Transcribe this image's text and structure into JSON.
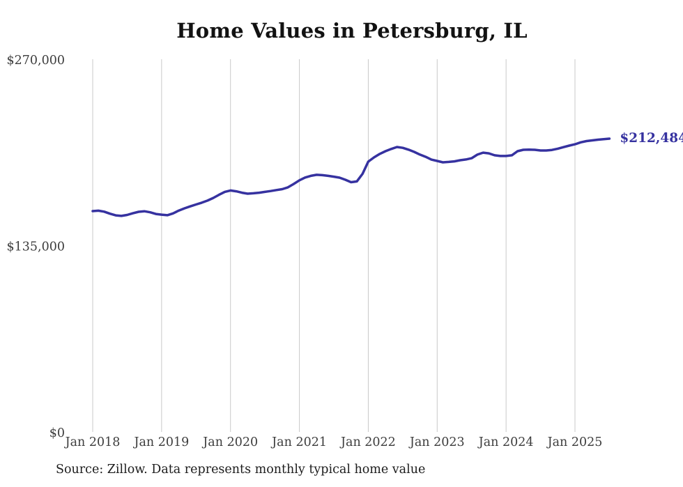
{
  "chart_data": {
    "type": "line",
    "title": "Home Values in Petersburg, IL",
    "source_note": "Source: Zillow. Data represents monthly typical home value",
    "end_label": "$212,484",
    "latest_value": 212484,
    "x_tick_labels": [
      "Jan 2018",
      "Jan 2019",
      "Jan 2020",
      "Jan 2021",
      "Jan 2022",
      "Jan 2023",
      "Jan 2024",
      "Jan 2025"
    ],
    "y_tick_labels": [
      "$270,000",
      "$135,000",
      "$0"
    ],
    "y_tick_values": [
      270000,
      135000,
      0
    ],
    "ylim": [
      0,
      270000
    ],
    "grid": "vertical-only",
    "legend": "none",
    "x_start": "Jan 2018",
    "x_end": "Jul 2025",
    "frequency": "monthly",
    "colors": {
      "line": "#3632a0",
      "grid": "#c9c9c9",
      "title_text": "#121212",
      "axis_text": "#3d3d3d",
      "source_text": "#1c1c1c",
      "background": "#ffffff"
    },
    "series": [
      {
        "name": "Monthly typical home value (USD)",
        "values": [
          160000,
          160300,
          159600,
          158100,
          156900,
          156500,
          157200,
          158400,
          159500,
          159900,
          159100,
          157900,
          157400,
          157000,
          158300,
          160400,
          162000,
          163400,
          164800,
          166100,
          167600,
          169500,
          171800,
          173900,
          174900,
          174300,
          173300,
          172600,
          172900,
          173300,
          173900,
          174500,
          175200,
          175900,
          177200,
          179600,
          182300,
          184300,
          185500,
          186300,
          186000,
          185500,
          184900,
          184200,
          182700,
          180900,
          181500,
          187000,
          195800,
          198900,
          201400,
          203400,
          205000,
          206400,
          205800,
          204500,
          202900,
          200900,
          199300,
          197300,
          196300,
          195300,
          195600,
          196000,
          196800,
          197400,
          198300,
          200900,
          202300,
          201800,
          200400,
          199900,
          199900,
          200400,
          203400,
          204400,
          204500,
          204400,
          203900,
          203900,
          204300,
          205200,
          206300,
          207400,
          208400,
          209800,
          210700,
          211200,
          211700,
          212100,
          212484
        ]
      }
    ]
  }
}
